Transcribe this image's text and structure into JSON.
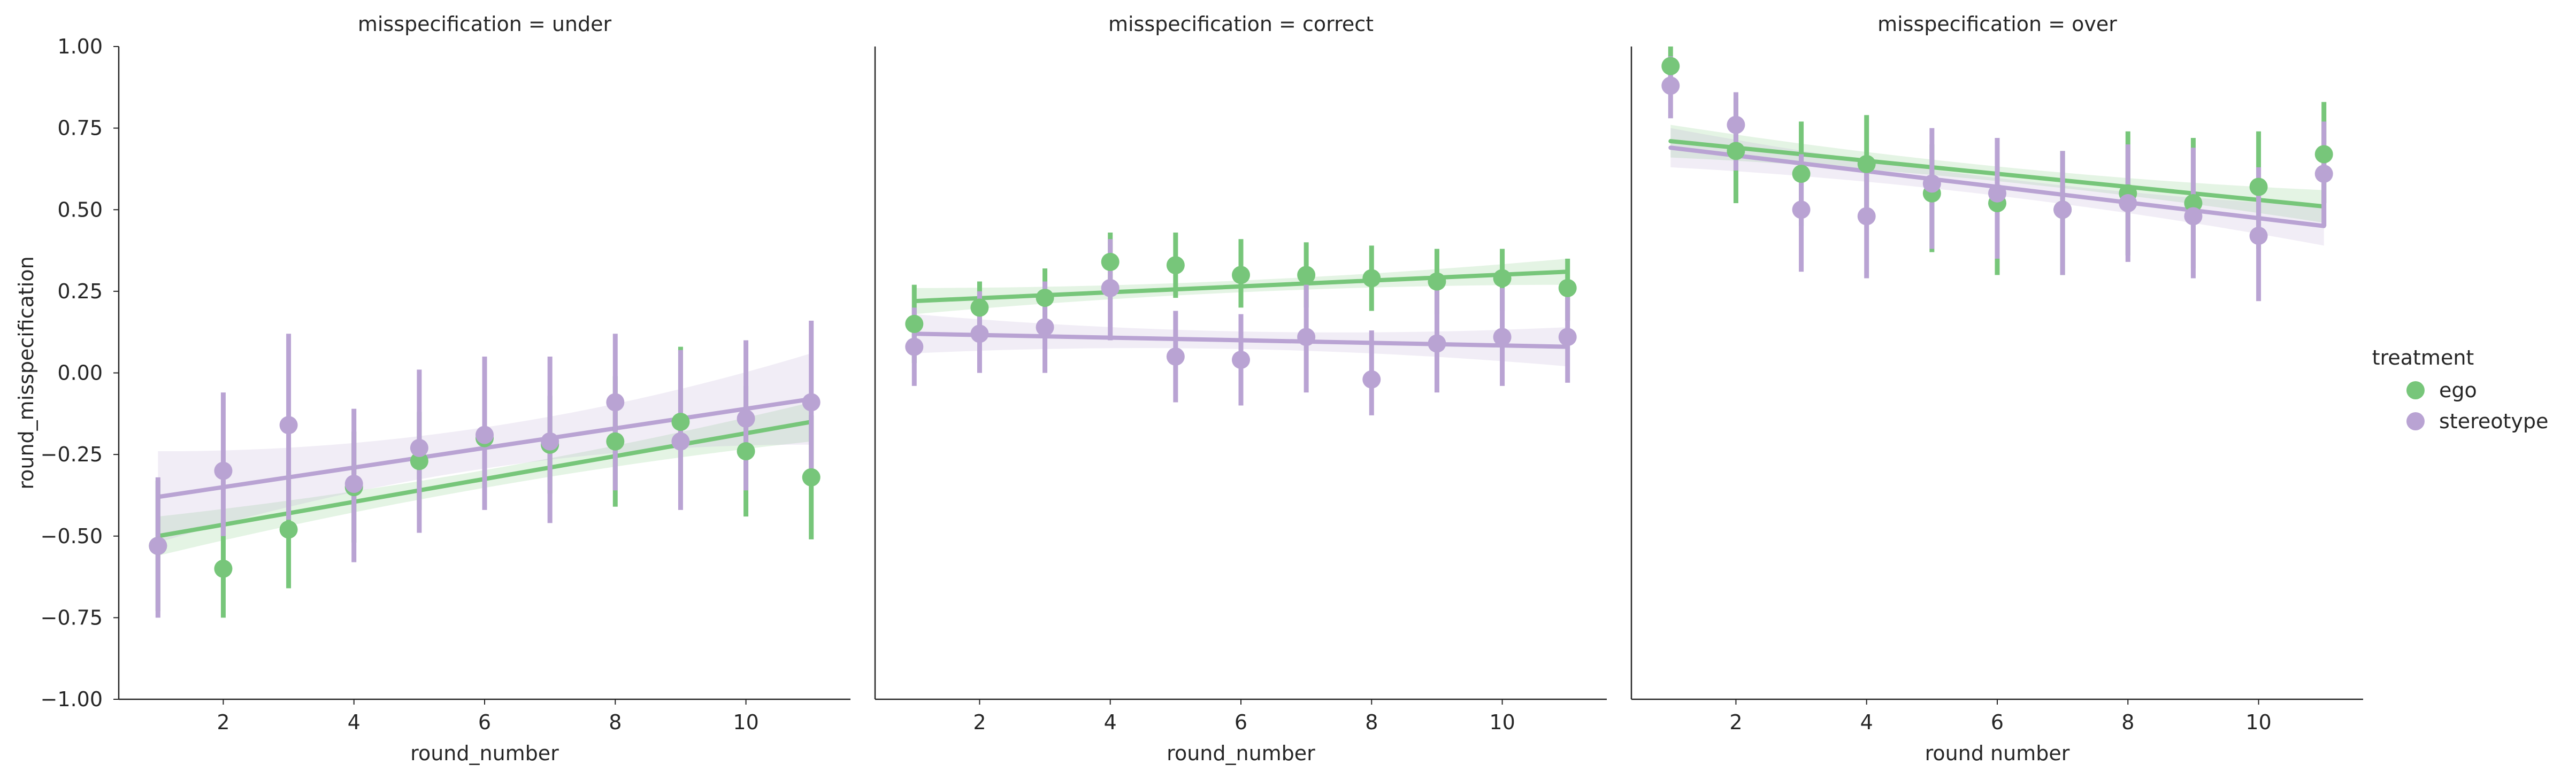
{
  "chart_data": {
    "type": "scatter",
    "style": "facet grid of point estimates with error bars and linear regression lines with confidence bands",
    "legend": {
      "title": "treatment",
      "placement": "right",
      "entries": [
        "ego",
        "stereotype"
      ]
    },
    "colors": {
      "ego": "#77c67a",
      "stereotype": "#b9a3d3",
      "axis": "#262626"
    },
    "ylabel": "round_misspecification",
    "ylim": [
      -1.0,
      1.0
    ],
    "yticks": [
      -1.0,
      -0.75,
      -0.5,
      -0.25,
      0.0,
      0.25,
      0.5,
      0.75,
      1.0
    ],
    "ytick_labels": [
      "−1.00",
      "−0.75",
      "−0.50",
      "−0.25",
      "0.00",
      "0.25",
      "0.50",
      "0.75",
      "1.00"
    ],
    "xlim": [
      0.4,
      11.6
    ],
    "xticks": [
      2,
      4,
      6,
      8,
      10
    ],
    "xtick_labels": [
      "2",
      "4",
      "6",
      "8",
      "10"
    ],
    "grid": false,
    "panels": [
      {
        "title": "misspecification = under",
        "xlabel": "round_number",
        "series": [
          {
            "name": "ego",
            "x": [
              1,
              2,
              3,
              4,
              5,
              6,
              7,
              8,
              9,
              10,
              11
            ],
            "y": [
              -0.53,
              -0.6,
              -0.48,
              -0.35,
              -0.27,
              -0.2,
              -0.22,
              -0.21,
              -0.15,
              -0.24,
              -0.32
            ],
            "err_low": [
              -0.73,
              -0.75,
              -0.66,
              -0.52,
              -0.42,
              -0.36,
              -0.37,
              -0.41,
              -0.36,
              -0.44,
              -0.51
            ],
            "err_high": [
              -0.33,
              -0.45,
              -0.3,
              -0.18,
              -0.12,
              -0.04,
              -0.07,
              -0.01,
              0.08,
              -0.04,
              -0.13
            ],
            "fit": {
              "start": -0.5,
              "end": -0.15
            },
            "band_width": 0.06
          },
          {
            "name": "stereotype",
            "x": [
              1,
              2,
              3,
              4,
              5,
              6,
              7,
              8,
              9,
              10,
              11
            ],
            "y": [
              -0.53,
              -0.3,
              -0.16,
              -0.34,
              -0.23,
              -0.19,
              -0.21,
              -0.09,
              -0.21,
              -0.14,
              -0.09
            ],
            "err_low": [
              -0.75,
              -0.5,
              -0.45,
              -0.58,
              -0.49,
              -0.42,
              -0.46,
              -0.36,
              -0.42,
              -0.36,
              -0.34
            ],
            "err_high": [
              -0.32,
              -0.06,
              0.12,
              -0.11,
              0.01,
              0.05,
              0.05,
              0.12,
              0.07,
              0.1,
              0.16
            ],
            "fit": {
              "start": -0.38,
              "end": -0.08
            },
            "band_width": 0.14
          }
        ]
      },
      {
        "title": "misspecification = correct",
        "xlabel": "round_number",
        "series": [
          {
            "name": "ego",
            "x": [
              1,
              2,
              3,
              4,
              5,
              6,
              7,
              8,
              9,
              10,
              11
            ],
            "y": [
              0.15,
              0.2,
              0.23,
              0.34,
              0.33,
              0.3,
              0.3,
              0.29,
              0.28,
              0.29,
              0.26
            ],
            "err_low": [
              0.03,
              0.1,
              0.13,
              0.24,
              0.23,
              0.2,
              0.2,
              0.19,
              0.18,
              0.19,
              0.16
            ],
            "err_high": [
              0.27,
              0.28,
              0.32,
              0.43,
              0.43,
              0.41,
              0.4,
              0.39,
              0.38,
              0.38,
              0.35
            ],
            "fit": {
              "start": 0.22,
              "end": 0.31
            },
            "band_width": 0.04
          },
          {
            "name": "stereotype",
            "x": [
              1,
              2,
              3,
              4,
              5,
              6,
              7,
              8,
              9,
              10,
              11
            ],
            "y": [
              0.08,
              0.12,
              0.14,
              0.26,
              0.05,
              0.04,
              0.11,
              -0.02,
              0.09,
              0.11,
              0.11
            ],
            "err_low": [
              -0.04,
              0.0,
              0.0,
              0.1,
              -0.09,
              -0.1,
              -0.06,
              -0.13,
              -0.06,
              -0.04,
              -0.03
            ],
            "err_high": [
              0.2,
              0.25,
              0.28,
              0.41,
              0.19,
              0.18,
              0.27,
              0.13,
              0.26,
              0.26,
              0.25
            ],
            "fit": {
              "start": 0.12,
              "end": 0.08
            },
            "band_width": 0.06
          }
        ]
      },
      {
        "title": "misspecification = over",
        "xlabel": "round number",
        "series": [
          {
            "name": "ego",
            "x": [
              1,
              2,
              3,
              4,
              5,
              6,
              7,
              8,
              9,
              10,
              11
            ],
            "y": [
              0.94,
              0.68,
              0.61,
              0.64,
              0.55,
              0.52,
              0.5,
              0.55,
              0.52,
              0.57,
              0.67
            ],
            "err_low": [
              0.86,
              0.52,
              0.45,
              0.5,
              0.37,
              0.3,
              0.3,
              0.36,
              0.32,
              0.38,
              0.52
            ],
            "err_high": [
              1.0,
              0.84,
              0.77,
              0.79,
              0.7,
              0.69,
              0.68,
              0.74,
              0.72,
              0.74,
              0.83
            ],
            "fit": {
              "start": 0.71,
              "end": 0.51
            },
            "band_width": 0.05
          },
          {
            "name": "stereotype",
            "x": [
              1,
              2,
              3,
              4,
              5,
              6,
              7,
              8,
              9,
              10,
              11
            ],
            "y": [
              0.88,
              0.76,
              0.5,
              0.48,
              0.58,
              0.55,
              0.5,
              0.52,
              0.48,
              0.42,
              0.61
            ],
            "err_low": [
              0.78,
              0.62,
              0.31,
              0.29,
              0.38,
              0.35,
              0.3,
              0.34,
              0.29,
              0.22,
              0.45
            ],
            "err_high": [
              0.97,
              0.86,
              0.67,
              0.65,
              0.75,
              0.72,
              0.68,
              0.7,
              0.69,
              0.63,
              0.77
            ],
            "fit": {
              "start": 0.69,
              "end": 0.45
            },
            "band_width": 0.06
          }
        ]
      }
    ]
  }
}
